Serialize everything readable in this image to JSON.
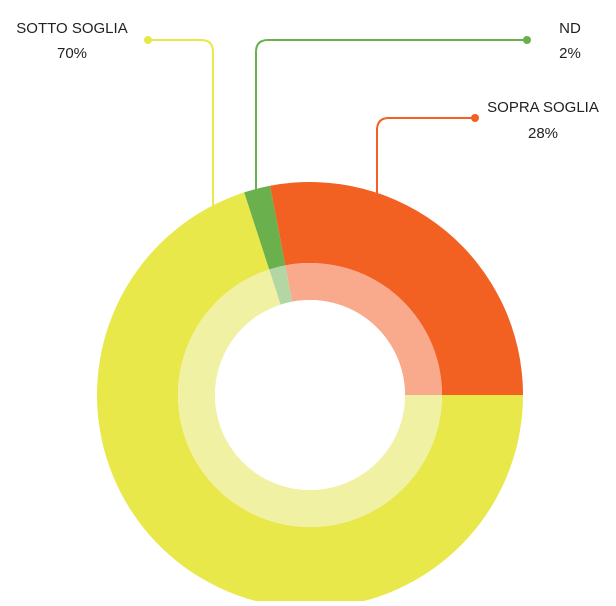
{
  "chart_data": {
    "type": "pie",
    "variant": "donut",
    "series": [
      {
        "name": "SOTTO SOGLIA",
        "value": 70,
        "value_label": "70%",
        "color": "#e8e84a",
        "inner_color": "#f1f1a4"
      },
      {
        "name": "ND",
        "value": 2,
        "value_label": "2%",
        "color": "#6ab04c",
        "inner_color": "#b3d7a3"
      },
      {
        "name": "SOPRA SOGLIA",
        "value": 28,
        "value_label": "28%",
        "color": "#f26122",
        "inner_color": "#f9a98c"
      }
    ]
  }
}
